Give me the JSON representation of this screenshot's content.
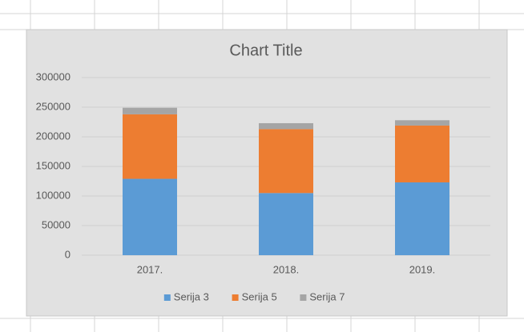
{
  "chart_data": {
    "type": "stacked-bar",
    "title": "Chart Title",
    "categories": [
      "2017.",
      "2018.",
      "2019."
    ],
    "series": [
      {
        "name": "Serija 3",
        "color": "#5b9bd5",
        "values": [
          129000,
          105000,
          123000
        ]
      },
      {
        "name": "Serija 5",
        "color": "#ed7d31",
        "values": [
          109000,
          108000,
          96000
        ]
      },
      {
        "name": "Serija 7",
        "color": "#a5a5a5",
        "values": [
          11000,
          10000,
          9000
        ]
      }
    ],
    "ylim": [
      0,
      300000
    ],
    "yticks": [
      0,
      50000,
      100000,
      150000,
      200000,
      250000,
      300000
    ],
    "grid": true,
    "legend": "bottom"
  }
}
